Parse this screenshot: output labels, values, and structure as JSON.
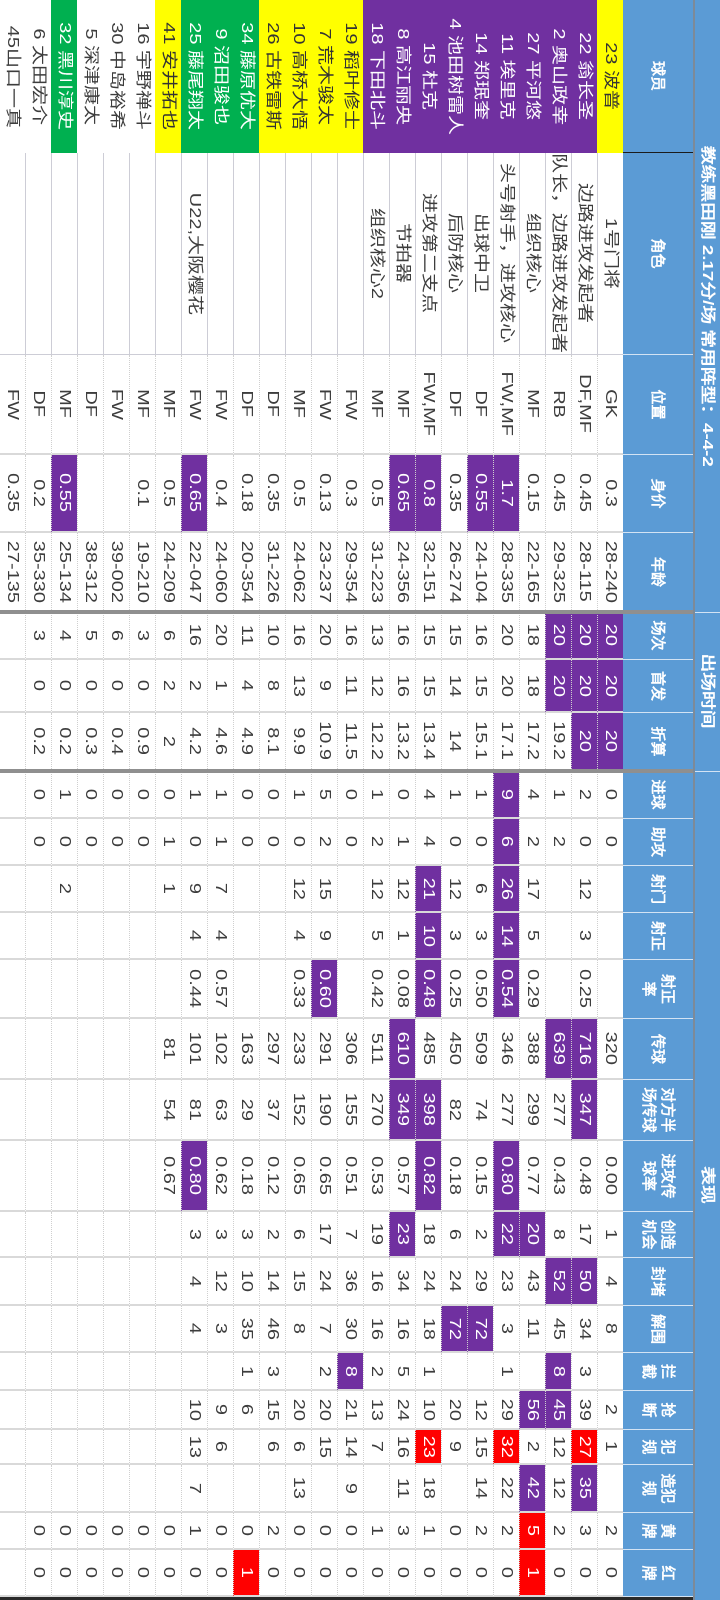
{
  "header": {
    "title": "教练黑田刚  2.17分/场  常用阵型：4-4-2",
    "group_appearances": "出场时间",
    "group_performance": "表现",
    "columns": [
      {
        "key": "player",
        "label": "球员"
      },
      {
        "key": "role",
        "label": "角色"
      },
      {
        "key": "position",
        "label": "位置"
      },
      {
        "key": "value",
        "label": "身价"
      },
      {
        "key": "age",
        "label": "年龄"
      },
      {
        "key": "apps",
        "label": "场次"
      },
      {
        "key": "starts",
        "label": "首发"
      },
      {
        "key": "adjusted",
        "label": "折算"
      },
      {
        "key": "goals",
        "label": "进球"
      },
      {
        "key": "assists",
        "label": "助攻"
      },
      {
        "key": "shots",
        "label": "射门"
      },
      {
        "key": "shots-on-target",
        "label": "射正"
      },
      {
        "key": "shot-accuracy",
        "label": "射正\n率"
      },
      {
        "key": "passes",
        "label": "传球"
      },
      {
        "key": "opp-half-passes",
        "label": "对方半\n场传球"
      },
      {
        "key": "attacking-pass-rate",
        "label": "进攻传\n球率"
      },
      {
        "key": "chances-created",
        "label": "创造\n机会"
      },
      {
        "key": "blocks",
        "label": "封堵"
      },
      {
        "key": "clearances",
        "label": "解围"
      },
      {
        "key": "interceptions",
        "label": "拦\n截"
      },
      {
        "key": "tackles",
        "label": "抢\n断"
      },
      {
        "key": "fouls",
        "label": "犯\n规"
      },
      {
        "key": "fouled",
        "label": "造犯\n规"
      },
      {
        "key": "yellow-cards",
        "label": "黄\n牌"
      },
      {
        "key": "red-cards",
        "label": "红\n牌"
      }
    ]
  },
  "colors": {
    "header_bg": "#5b9bd5",
    "highlight": {
      "purple": {
        "bg": "#7030a0",
        "fg": "#ffffff"
      },
      "yellow": {
        "bg": "#ffff00",
        "fg": "#333333"
      },
      "green": {
        "bg": "#00b050",
        "fg": "#ffffff"
      },
      "red": {
        "bg": "#ff0000",
        "fg": "#ffffff"
      }
    }
  },
  "table": {
    "rows": [
      {
        "cells": [
          "23 波普",
          "1号门将",
          "GK",
          "0.3",
          "28-240",
          "20",
          "20",
          "20",
          "0",
          "0",
          "",
          "",
          "",
          "320",
          "",
          "0.00",
          "1",
          "4",
          "8",
          "",
          "2",
          "1",
          "",
          "2",
          "0"
        ],
        "hl": {
          "0": "yellow",
          "5": "purple",
          "6": "purple",
          "7": "purple"
        }
      },
      {
        "cells": [
          "22 翁长圣",
          "边路进攻发起者",
          "DF,MF",
          "0.45",
          "28-115",
          "20",
          "20",
          "20",
          "2",
          "0",
          "12",
          "3",
          "0.25",
          "716",
          "347",
          "0.48",
          "17",
          "50",
          "34",
          "3",
          "39",
          "27",
          "35",
          "3",
          "0"
        ],
        "hl": {
          "0": "purple",
          "5": "purple",
          "6": "purple",
          "7": "purple",
          "13": "purple",
          "14": "purple",
          "17": "purple",
          "21": "red",
          "22": "purple"
        }
      },
      {
        "cells": [
          "2 奥山政幸",
          "队长，边路进攻发起者",
          "RB",
          "0.45",
          "29-325",
          "20",
          "20",
          "19.2",
          "1",
          "2",
          "",
          "",
          "",
          "639",
          "277",
          "0.43",
          "8",
          "52",
          "45",
          "8",
          "45",
          "12",
          "12",
          "2",
          "0"
        ],
        "hl": {
          "0": "purple",
          "5": "purple",
          "6": "purple",
          "13": "purple",
          "17": "purple",
          "19": "purple",
          "20": "purple"
        }
      },
      {
        "cells": [
          "27 平河悠",
          "组织核心",
          "MF",
          "0.15",
          "22-165",
          "18",
          "18",
          "17.2",
          "4",
          "2",
          "17",
          "5",
          "0.29",
          "388",
          "299",
          "0.77",
          "20",
          "43",
          "11",
          "",
          "56",
          "2",
          "42",
          "5",
          "1"
        ],
        "hl": {
          "0": "purple",
          "16": "purple",
          "20": "purple",
          "22": "purple",
          "23": "red",
          "24": "red"
        }
      },
      {
        "cells": [
          "11 埃里克",
          "头号射手，进攻核心",
          "FW,MF",
          "1.7",
          "28-335",
          "20",
          "20",
          "17.1",
          "9",
          "6",
          "26",
          "14",
          "0.54",
          "346",
          "277",
          "0.80",
          "22",
          "23",
          "3",
          "1",
          "29",
          "32",
          "22",
          "2",
          "0"
        ],
        "hl": {
          "0": "purple",
          "3": "purple",
          "8": "purple",
          "9": "purple",
          "10": "purple",
          "11": "purple",
          "12": "purple",
          "15": "purple",
          "16": "purple",
          "21": "red"
        }
      },
      {
        "cells": [
          "14 郑珉奎",
          "出球中卫",
          "DF",
          "0.55",
          "24-104",
          "16",
          "15",
          "15.1",
          "1",
          "0",
          "6",
          "3",
          "0.50",
          "509",
          "74",
          "0.15",
          "2",
          "29",
          "72",
          "",
          "12",
          "15",
          "14",
          "2",
          "0"
        ],
        "hl": {
          "0": "purple",
          "3": "purple",
          "18": "purple"
        }
      },
      {
        "cells": [
          "4 池田树雷人",
          "后防核心",
          "DF",
          "0.35",
          "26-274",
          "15",
          "14",
          "14",
          "1",
          "0",
          "12",
          "3",
          "0.25",
          "450",
          "82",
          "0.18",
          "6",
          "24",
          "72",
          "",
          "20",
          "9",
          "",
          "0",
          "0"
        ],
        "hl": {
          "0": "purple",
          "18": "purple"
        }
      },
      {
        "cells": [
          "15 杜克",
          "进攻第二支点",
          "FW,MF",
          "0.8",
          "32-151",
          "15",
          "15",
          "13.4",
          "4",
          "4",
          "21",
          "10",
          "0.48",
          "485",
          "398",
          "0.82",
          "18",
          "24",
          "18",
          "1",
          "10",
          "23",
          "18",
          "1",
          "0"
        ],
        "hl": {
          "0": "purple",
          "3": "purple",
          "10": "purple",
          "11": "purple",
          "12": "purple",
          "14": "purple",
          "15": "purple",
          "21": "red"
        }
      },
      {
        "cells": [
          "8 高江丽央",
          "节拍器",
          "MF",
          "0.65",
          "24-356",
          "16",
          "16",
          "13.2",
          "0",
          "1",
          "12",
          "1",
          "0.08",
          "610",
          "349",
          "0.57",
          "23",
          "34",
          "16",
          "5",
          "24",
          "16",
          "11",
          "3",
          "0"
        ],
        "hl": {
          "0": "purple",
          "3": "purple",
          "13": "purple",
          "14": "purple",
          "16": "purple"
        }
      },
      {
        "cells": [
          "18 下田北斗",
          "组织核心2",
          "MF",
          "0.5",
          "31-223",
          "13",
          "12",
          "12.2",
          "1",
          "2",
          "12",
          "5",
          "0.42",
          "511",
          "270",
          "0.53",
          "19",
          "16",
          "16",
          "2",
          "13",
          "7",
          "",
          "1",
          "0"
        ],
        "hl": {
          "0": "purple"
        }
      },
      {
        "cells": [
          "19 稻叶修士",
          "",
          "FW",
          "0.3",
          "29-354",
          "16",
          "11",
          "11.5",
          "0",
          "0",
          "",
          "",
          "",
          "306",
          "155",
          "0.51",
          "7",
          "36",
          "30",
          "8",
          "21",
          "14",
          "9",
          "0",
          "0"
        ],
        "hl": {
          "0": "yellow",
          "19": "purple"
        }
      },
      {
        "cells": [
          "7 荒木骏太",
          "",
          "FW",
          "0.13",
          "23-237",
          "20",
          "9",
          "10.9",
          "5",
          "2",
          "15",
          "9",
          "0.60",
          "291",
          "190",
          "0.65",
          "17",
          "24",
          "7",
          "2",
          "20",
          "15",
          "",
          "0",
          "0"
        ],
        "hl": {
          "0": "yellow",
          "12": "purple"
        }
      },
      {
        "cells": [
          "10 高桥大悟",
          "",
          "MF",
          "0.5",
          "24-062",
          "16",
          "13",
          "9.9",
          "1",
          "0",
          "12",
          "4",
          "0.33",
          "233",
          "152",
          "0.65",
          "6",
          "15",
          "8",
          "",
          "20",
          "6",
          "13",
          "0",
          "0"
        ],
        "hl": {
          "0": "yellow"
        }
      },
      {
        "cells": [
          "26 古铁雷斯",
          "",
          "DF",
          "0.35",
          "31-226",
          "10",
          "8",
          "8.1",
          "0",
          "0",
          "",
          "",
          "",
          "297",
          "37",
          "0.12",
          "2",
          "14",
          "46",
          "3",
          "15",
          "6",
          "",
          "2",
          "0"
        ],
        "hl": {
          "0": "yellow"
        }
      },
      {
        "cells": [
          "34 藤原优大",
          "",
          "DF",
          "0.18",
          "20-354",
          "11",
          "4",
          "4.9",
          "0",
          "0",
          "",
          "",
          "",
          "163",
          "29",
          "0.18",
          "3",
          "10",
          "35",
          "1",
          "6",
          "",
          "",
          "0",
          "1"
        ],
        "hl": {
          "0": "green",
          "24": "red"
        }
      },
      {
        "cells": [
          "9 沼田骏也",
          "",
          "FW",
          "0.4",
          "24-060",
          "20",
          "1",
          "4.6",
          "1",
          "1",
          "7",
          "4",
          "0.57",
          "102",
          "63",
          "0.62",
          "3",
          "12",
          "3",
          "",
          "9",
          "6",
          "",
          "0",
          "0"
        ],
        "hl": {
          "0": "green"
        }
      },
      {
        "cells": [
          "25 藤尾翔太",
          "U22,大阪樱花",
          "FW",
          "0.65",
          "22-047",
          "16",
          "2",
          "4.2",
          "1",
          "0",
          "9",
          "4",
          "0.44",
          "101",
          "81",
          "0.80",
          "3",
          "4",
          "4",
          "",
          "10",
          "13",
          "7",
          "1",
          "0"
        ],
        "hl": {
          "0": "green",
          "3": "purple",
          "15": "purple"
        }
      },
      {
        "cells": [
          "41 安井拓也",
          "",
          "MF",
          "0.5",
          "24-209",
          "6",
          "2",
          "2",
          "0",
          "1",
          "1",
          "",
          "",
          "81",
          "54",
          "0.67",
          "",
          "",
          "",
          "",
          "",
          "",
          "",
          "0",
          "0"
        ],
        "hl": {
          "0": "yellow"
        }
      },
      {
        "cells": [
          "16 宇野禅斗",
          "",
          "MF",
          "0.1",
          "19-210",
          "3",
          "0",
          "0.9",
          "0",
          "0",
          "",
          "",
          "",
          "",
          "",
          "",
          "",
          "",
          "",
          "",
          "",
          "",
          "",
          "0",
          "0"
        ],
        "hl": {}
      },
      {
        "cells": [
          "30 中岛裕希",
          "",
          "FW",
          "",
          "39-002",
          "6",
          "0",
          "0.4",
          "0",
          "0",
          "",
          "",
          "",
          "",
          "",
          "",
          "",
          "",
          "",
          "",
          "",
          "",
          "",
          "0",
          "0"
        ],
        "hl": {}
      },
      {
        "cells": [
          "5 深津康太",
          "",
          "DF",
          "",
          "38-312",
          "5",
          "0",
          "0.3",
          "0",
          "0",
          "",
          "",
          "",
          "",
          "",
          "",
          "",
          "",
          "",
          "",
          "",
          "",
          "",
          "0",
          "0"
        ],
        "hl": {}
      },
      {
        "cells": [
          "32 黑川淳史",
          "",
          "MF",
          "0.55",
          "25-134",
          "4",
          "0",
          "0.2",
          "1",
          "0",
          "2",
          "",
          "",
          "",
          "",
          "",
          "",
          "",
          "",
          "",
          "",
          "",
          "",
          "0",
          "0"
        ],
        "hl": {
          "0": "green",
          "3": "purple"
        }
      },
      {
        "cells": [
          "6 太田宏介",
          "",
          "DF",
          "0.2",
          "35-330",
          "3",
          "0",
          "0.2",
          "0",
          "0",
          "",
          "",
          "",
          "",
          "",
          "",
          "",
          "",
          "",
          "",
          "",
          "",
          "",
          "0",
          "0"
        ],
        "hl": {}
      },
      {
        "cells": [
          "45山口一真",
          "",
          "FW",
          "0.35",
          "27-135",
          "",
          "",
          "",
          "",
          "",
          "",
          "",
          "",
          "",
          "",
          "",
          "",
          "",
          "",
          "",
          "",
          "",
          "",
          "",
          ""
        ],
        "hl": {}
      }
    ]
  }
}
